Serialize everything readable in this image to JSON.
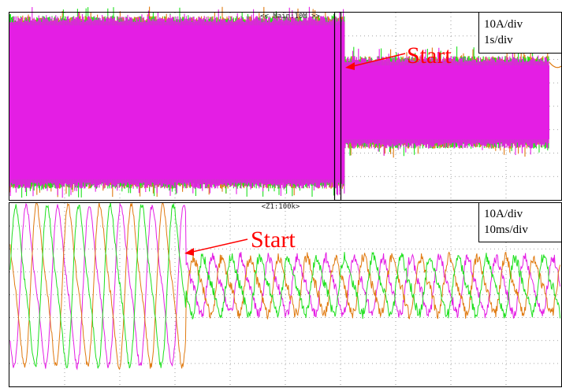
{
  "chart_data": [
    {
      "type": "line",
      "panel_label": "<< Main:10M >>",
      "scale_labels": [
        "10A/div",
        "1s/div"
      ],
      "annotation": "Start",
      "grid": true,
      "series_colors": [
        "#1ee01e",
        "#e07a10",
        "#e41ee4"
      ],
      "divisions": {
        "x": 10,
        "y": 8
      },
      "envelope_before_start_div": [
        -3.6,
        3.6
      ],
      "envelope_after_start_div": [
        -1.8,
        1.8
      ],
      "start_time_div": 7.0
    },
    {
      "type": "line",
      "panel_label": "<Z1:100k>",
      "scale_labels": [
        "10A/div",
        "10ms/div"
      ],
      "annotation": "Start",
      "grid": true,
      "series_colors": [
        "#1ee01e",
        "#e07a10",
        "#e41ee4"
      ],
      "divisions": {
        "x": 10,
        "y": 8
      },
      "amplitude_before_start_div": 3.0,
      "amplitude_after_start_div": 1.2,
      "start_time_div": 3.3
    }
  ]
}
